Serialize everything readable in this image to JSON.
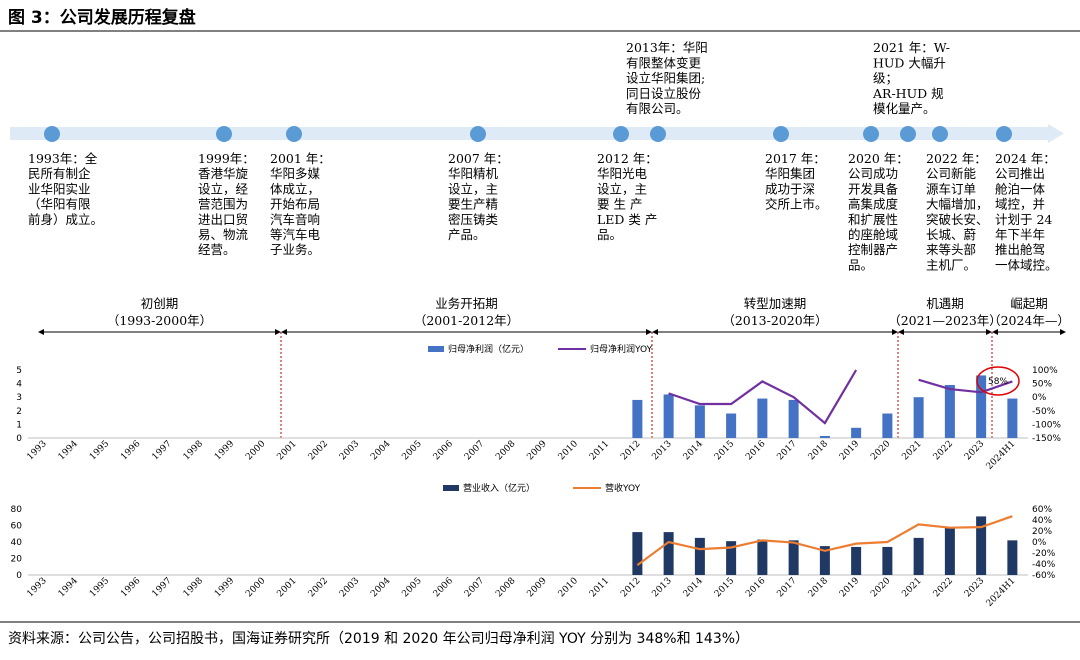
{
  "figure": {
    "title": "图 3：公司发展历程复盘",
    "source": "资料来源：公司公告，公司招股书，国海证券研究所（2019 和 2020 年公司归母净利润 YOY 分别为 348%和 143%）"
  },
  "timeline": {
    "events": [
      {
        "lines": [
          "1993年：全",
          "民所有制企",
          "业华阳实业",
          "（华阳有限",
          "前身）成立。"
        ]
      },
      {
        "lines": [
          "1999年：",
          "香港华旋",
          "设立，经",
          "营范围为",
          "进出口贸",
          "易、物流",
          "经营。"
        ]
      },
      {
        "lines": [
          "2001 年：",
          "华阳多媒",
          "体成立，",
          "开始布局",
          "汽车音响",
          "等汽车电",
          "子业务。"
        ]
      },
      {
        "lines": [
          "2007 年：",
          "华阳精机",
          "设立，主",
          "要生产精",
          "密压铸类",
          "产品。"
        ]
      },
      {
        "lines": [
          "2012 年：",
          "华阳光电",
          "设立，主",
          "要 生 产",
          "LED 类 产",
          "品。"
        ]
      },
      {
        "lines": [
          "2013年：华阳",
          "有限整体变更",
          "设立华阳集团;",
          "同日设立股份",
          "有限公司。"
        ]
      },
      {
        "lines": [
          "2017 年：",
          "华阳集团",
          "成功于深",
          "交所上市。"
        ]
      },
      {
        "lines": [
          "2020 年：",
          "公司成功",
          "开发具备",
          "高集成度",
          "和扩展性",
          "的座舱域",
          "控制器产",
          "品。"
        ]
      },
      {
        "lines": [
          "2021 年：W-",
          "HUD 大幅升",
          "级；",
          "AR-HUD 规",
          "模化量产。"
        ]
      },
      {
        "lines": [
          "2022 年：",
          "公司新能",
          "源车订单",
          "大幅增加，",
          "突破长安、",
          "长城、蔚",
          "来等头部",
          "主机厂。"
        ]
      },
      {
        "lines": [
          "2024 年：",
          "公司推出",
          "舱泊一体",
          "域控，并",
          "计划于 24",
          "年下半年",
          "推出舱驾",
          "一体域控。"
        ]
      }
    ],
    "phases": [
      {
        "name": "初创期",
        "range": "（1993-2000年）"
      },
      {
        "name": "业务开拓期",
        "range": "（2001-2012年）"
      },
      {
        "name": "转型加速期",
        "range": "（2013-2020年）"
      },
      {
        "name": "机遇期",
        "range": "（2021—2023年）"
      },
      {
        "name": "崛起期",
        "range": "（2024年—）"
      }
    ]
  },
  "chart_data": [
    {
      "type": "bar",
      "categories": [
        "1993",
        "1994",
        "1995",
        "1996",
        "1997",
        "1998",
        "1999",
        "2000",
        "2001",
        "2002",
        "2003",
        "2004",
        "2005",
        "2006",
        "2007",
        "2008",
        "2009",
        "2010",
        "2011",
        "2012",
        "2013",
        "2014",
        "2015",
        "2016",
        "2017",
        "2018",
        "2019",
        "2020",
        "2021",
        "2022",
        "2023",
        "2024H1"
      ],
      "series": [
        {
          "name": "归母净利润（亿元）",
          "kind": "bar",
          "axis": "left",
          "color": "#4472C4",
          "values": [
            null,
            null,
            null,
            null,
            null,
            null,
            null,
            null,
            null,
            null,
            null,
            null,
            null,
            null,
            null,
            null,
            null,
            null,
            null,
            2.8,
            3.2,
            2.4,
            1.8,
            2.9,
            2.8,
            0.15,
            0.75,
            1.8,
            3.0,
            3.9,
            4.6,
            2.9
          ]
        },
        {
          "name": "归母净利润YOY",
          "kind": "line",
          "axis": "right",
          "color": "#7030A0",
          "values": [
            null,
            null,
            null,
            null,
            null,
            null,
            null,
            null,
            null,
            null,
            null,
            null,
            null,
            null,
            null,
            null,
            null,
            null,
            null,
            null,
            14,
            -25,
            -25,
            58,
            0,
            -95,
            348,
            143,
            64,
            30,
            18,
            58
          ],
          "segments": [
            [
              20,
              26
            ],
            [
              28,
              31
            ]
          ]
        }
      ],
      "y_left": {
        "ticks": [
          0,
          1,
          2,
          3,
          4,
          5
        ],
        "lim": [
          0,
          5
        ]
      },
      "y_right": {
        "ticks": [
          "100%",
          "50%",
          "0%",
          "-50%",
          "-100%",
          "-150%"
        ],
        "lim": [
          -150,
          100
        ]
      },
      "annotation": "58%",
      "legend": "top-center"
    },
    {
      "type": "bar",
      "categories": [
        "1993",
        "1994",
        "1995",
        "1996",
        "1997",
        "1998",
        "1999",
        "2000",
        "2001",
        "2002",
        "2003",
        "2004",
        "2005",
        "2006",
        "2007",
        "2008",
        "2009",
        "2010",
        "2011",
        "2012",
        "2013",
        "2014",
        "2015",
        "2016",
        "2017",
        "2018",
        "2019",
        "2020",
        "2021",
        "2022",
        "2023",
        "2024H1"
      ],
      "series": [
        {
          "name": "营业收入（亿元）",
          "kind": "bar",
          "axis": "left",
          "color": "#203864",
          "values": [
            null,
            null,
            null,
            null,
            null,
            null,
            null,
            null,
            null,
            null,
            null,
            null,
            null,
            null,
            null,
            null,
            null,
            null,
            null,
            52,
            52,
            45,
            41,
            43,
            42,
            35,
            34,
            34,
            45,
            57,
            71,
            42
          ]
        },
        {
          "name": "营收YOY",
          "kind": "line",
          "axis": "right",
          "color": "#ED7D31",
          "values": [
            null,
            null,
            null,
            null,
            null,
            null,
            null,
            null,
            null,
            null,
            null,
            null,
            null,
            null,
            null,
            null,
            null,
            null,
            null,
            -42,
            0,
            -13,
            -10,
            3,
            -1,
            -16,
            -3,
            0,
            32,
            26,
            27,
            47
          ],
          "segments": [
            [
              19,
              31
            ]
          ]
        }
      ],
      "y_left": {
        "ticks": [
          80,
          60,
          40,
          20,
          0
        ],
        "lim": [
          0,
          80
        ]
      },
      "y_right": {
        "ticks": [
          "60%",
          "40%",
          "20%",
          "0%",
          "-20%",
          "-40%",
          "-60%"
        ],
        "lim": [
          -60,
          60
        ]
      },
      "legend": "top-center"
    }
  ]
}
